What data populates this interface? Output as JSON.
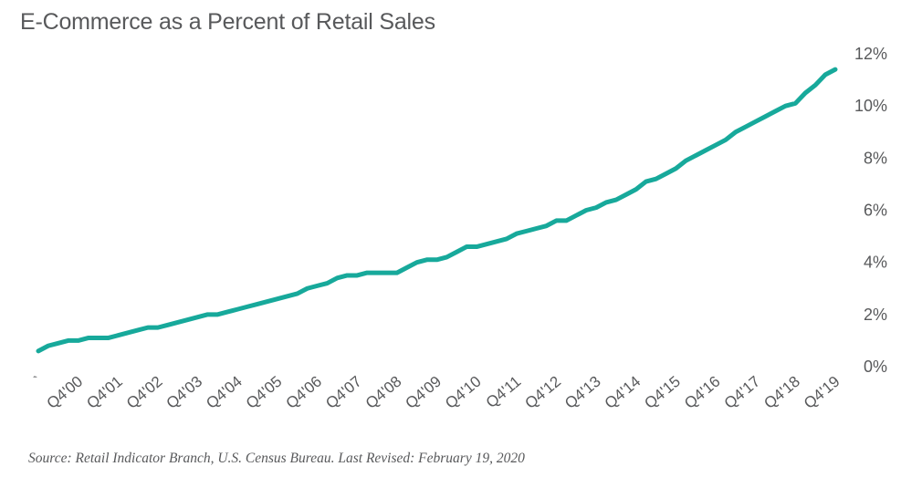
{
  "chart_data": {
    "type": "line",
    "title": "E-Commerce as a Percent of Retail Sales",
    "source": "Source: Retail Indicator Branch, U.S. Census Bureau. Last Revised: February 19, 2020",
    "line_color": "#17a99b",
    "y_axis_position": "right",
    "ylim": [
      0,
      12
    ],
    "y_ticks": [
      "0%",
      "2%",
      "4%",
      "6%",
      "8%",
      "10%",
      "12%"
    ],
    "y_tick_values": [
      0,
      2,
      4,
      6,
      8,
      10,
      12
    ],
    "x_ticks": [
      "`",
      "Q4'00",
      "Q4'01",
      "Q4'02",
      "Q4'03",
      "Q4'04",
      "Q4'05",
      "Q4'06",
      "Q4'07",
      "Q4'08",
      "Q4'09",
      "Q4'10",
      "Q4'11",
      "Q4'12",
      "Q4'13",
      "Q4'14",
      "Q4'15",
      "Q4'16",
      "Q4'17",
      "Q4'18",
      "Q4'19"
    ],
    "x_tick_indices": [
      0,
      4,
      8,
      12,
      16,
      20,
      24,
      28,
      32,
      36,
      40,
      44,
      48,
      52,
      56,
      60,
      64,
      68,
      72,
      76,
      80
    ],
    "grid": false,
    "series": [
      {
        "values": [
          0.6,
          0.8,
          0.9,
          1.0,
          1.0,
          1.1,
          1.1,
          1.1,
          1.2,
          1.3,
          1.4,
          1.5,
          1.5,
          1.6,
          1.7,
          1.8,
          1.9,
          2.0,
          2.0,
          2.1,
          2.2,
          2.3,
          2.4,
          2.5,
          2.6,
          2.7,
          2.8,
          3.0,
          3.1,
          3.2,
          3.4,
          3.5,
          3.5,
          3.6,
          3.6,
          3.6,
          3.6,
          3.8,
          4.0,
          4.1,
          4.1,
          4.2,
          4.4,
          4.6,
          4.6,
          4.7,
          4.8,
          4.9,
          5.1,
          5.2,
          5.3,
          5.4,
          5.6,
          5.6,
          5.8,
          6.0,
          6.1,
          6.3,
          6.4,
          6.6,
          6.8,
          7.1,
          7.2,
          7.4,
          7.6,
          7.9,
          8.1,
          8.3,
          8.5,
          8.7,
          9.0,
          9.2,
          9.4,
          9.6,
          9.8,
          10.0,
          10.1,
          10.5,
          10.8,
          11.2,
          11.4
        ]
      }
    ]
  }
}
